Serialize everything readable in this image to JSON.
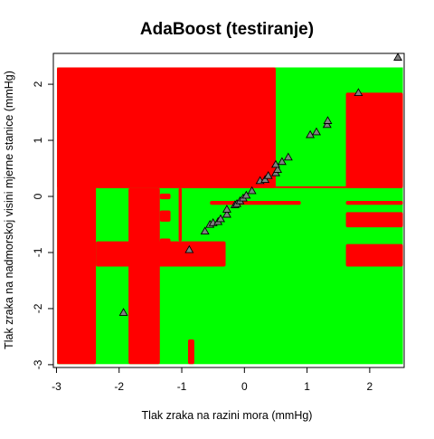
{
  "chart_data": {
    "type": "scatter",
    "title": "AdaBoost (testiranje)",
    "xlabel": "Tlak zraka na razini mora (mmHg)",
    "ylabel": "Tlak zraka na nadmorskoj visini mjerne stanice (mmHg)",
    "xlim": [
      -3.05,
      2.55
    ],
    "ylim": [
      -3.05,
      2.55
    ],
    "x_ticks": [
      -3,
      -2,
      -1,
      0,
      1,
      2
    ],
    "y_ticks": [
      -3,
      -2,
      -1,
      0,
      1,
      2
    ],
    "tick_labels_x": [
      "-3",
      "-2",
      "-1",
      "0",
      "1",
      "2"
    ],
    "tick_labels_y": [
      "-3",
      "-2",
      "-1",
      "0",
      "1",
      "2"
    ],
    "grid": false,
    "legend": "none",
    "background": {
      "type": "decision_regions",
      "default_class": "green",
      "class_colors": {
        "red": "#ff0000",
        "green": "#00ff00"
      },
      "red_regions": [
        [
          -3.05,
          -2.37,
          -3.05,
          2.55
        ],
        [
          -3.05,
          -0.3,
          1.9,
          2.55
        ],
        [
          -3.05,
          0.5,
          0.15,
          2.55
        ],
        [
          -2.37,
          2.55,
          0.15,
          0.18
        ],
        [
          1.62,
          2.55,
          0.15,
          1.85
        ],
        [
          -1.85,
          -1.35,
          -3.05,
          0.15
        ],
        [
          -1.35,
          -1.18,
          -0.45,
          -0.25
        ],
        [
          -1.35,
          -1.18,
          -0.9,
          -0.75
        ],
        [
          -1.35,
          -1.18,
          -0.05,
          0.05
        ],
        [
          -2.37,
          -0.3,
          -1.25,
          -0.8
        ],
        [
          -1.05,
          -1.0,
          -0.8,
          0.15
        ],
        [
          -0.9,
          -0.8,
          -3.05,
          -2.55
        ],
        [
          -0.55,
          0.9,
          -0.15,
          -0.08
        ],
        [
          1.62,
          2.55,
          -0.15,
          -0.08
        ],
        [
          1.62,
          2.55,
          -0.55,
          -0.28
        ],
        [
          1.62,
          2.55,
          -1.25,
          -0.85
        ]
      ]
    },
    "series": [
      {
        "marker": "triangle",
        "color": "#000000",
        "fill": "#808080",
        "points": [
          [
            -1.93,
            -2.07
          ],
          [
            -0.88,
            -0.95
          ],
          [
            -0.63,
            -0.62
          ],
          [
            -0.55,
            -0.5
          ],
          [
            -0.5,
            -0.47
          ],
          [
            -0.42,
            -0.45
          ],
          [
            -0.38,
            -0.4
          ],
          [
            -0.28,
            -0.32
          ],
          [
            -0.28,
            -0.23
          ],
          [
            -0.15,
            -0.15
          ],
          [
            -0.12,
            -0.13
          ],
          [
            -0.07,
            -0.08
          ],
          [
            -0.02,
            -0.03
          ],
          [
            0.03,
            0.02
          ],
          [
            0.12,
            0.1
          ],
          [
            0.25,
            0.28
          ],
          [
            0.33,
            0.3
          ],
          [
            0.38,
            0.37
          ],
          [
            0.5,
            0.42
          ],
          [
            0.53,
            0.48
          ],
          [
            0.5,
            0.57
          ],
          [
            0.6,
            0.62
          ],
          [
            0.7,
            0.7
          ],
          [
            1.05,
            1.1
          ],
          [
            1.15,
            1.15
          ],
          [
            1.32,
            1.28
          ],
          [
            1.33,
            1.35
          ],
          [
            1.82,
            1.85
          ],
          [
            2.45,
            2.48
          ]
        ]
      }
    ]
  }
}
